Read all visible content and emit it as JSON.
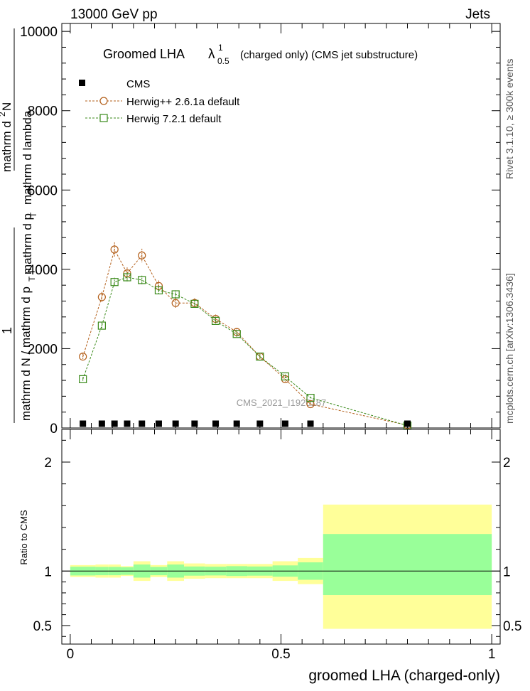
{
  "header": {
    "left": "13000 GeV pp",
    "right": "Jets"
  },
  "title": {
    "main": "Groomed LHA",
    "lambda": "λ",
    "lambda_sup": "1",
    "lambda_sub": "0.5",
    "suffix": "(charged only) (CMS jet substructure)"
  },
  "side_labels": {
    "rivet": "Rivet 3.1.10, ≥ 300k events",
    "mcplots": "mcplots.cern.ch [arXiv:1306.3436]"
  },
  "watermark": "CMS_2021_I1920187",
  "axes": {
    "ylabel_top_num": "1",
    "ylabel_top_a": "mathrm d N / mathrm d p",
    "ylabel_top_a_sub": "T",
    "ylabel_top_b": "mathrm d",
    "ylabel_top_b_sup": "2",
    "ylabel_top_c": "N",
    "ylabel_den_a": "mathrm d p",
    "ylabel_den_a_sub": "T",
    "ylabel_den_b": "mathrm d lambda",
    "ylabel_ratio": "Ratio to CMS",
    "xlabel": "groomed LHA (charged-only)"
  },
  "legend": [
    {
      "label": "CMS",
      "key": "cms"
    },
    {
      "label": "Herwig++ 2.6.1a default",
      "key": "hpp"
    },
    {
      "label": "Herwig 7.2.1 default",
      "key": "h7"
    }
  ],
  "chart_data": {
    "type": "line",
    "title": "Groomed LHA λ^1_0.5 (charged only) (CMS jet substructure)",
    "xlabel": "groomed LHA (charged-only)",
    "ylabel": "1/(dN/dpT) d²N/(dpT dλ)",
    "xlim": [
      -0.02,
      1.02
    ],
    "ylim": [
      0,
      10200
    ],
    "x_ticks": [
      0,
      0.5,
      1
    ],
    "x_tick_labels": [
      "0",
      "0.5",
      "1"
    ],
    "y_ticks": [
      0,
      2000,
      4000,
      6000,
      8000,
      10000
    ],
    "y_tick_labels": [
      "0",
      "2000",
      "4000",
      "6000",
      "8000",
      "10000"
    ],
    "bins": [
      [
        0.0,
        0.06
      ],
      [
        0.06,
        0.09
      ],
      [
        0.09,
        0.12
      ],
      [
        0.12,
        0.15
      ],
      [
        0.15,
        0.19
      ],
      [
        0.19,
        0.23
      ],
      [
        0.23,
        0.27
      ],
      [
        0.27,
        0.32
      ],
      [
        0.32,
        0.37
      ],
      [
        0.37,
        0.42
      ],
      [
        0.42,
        0.48
      ],
      [
        0.48,
        0.54
      ],
      [
        0.54,
        0.6
      ],
      [
        0.6,
        1.0
      ]
    ],
    "series": [
      {
        "name": "CMS",
        "color": "#000000",
        "marker": "filled-square",
        "x": [
          0.03,
          0.075,
          0.105,
          0.135,
          0.17,
          0.21,
          0.25,
          0.295,
          0.345,
          0.395,
          0.45,
          0.51,
          0.57,
          0.8
        ],
        "values": [
          25,
          28,
          40,
          45,
          50,
          38,
          30,
          28,
          22,
          18,
          12,
          8,
          5,
          1
        ]
      },
      {
        "name": "Herwig++ 2.6.1a default",
        "color": "#b35f1a",
        "marker": "open-circle",
        "x": [
          0.03,
          0.075,
          0.105,
          0.135,
          0.17,
          0.21,
          0.25,
          0.295,
          0.345,
          0.395,
          0.45,
          0.51,
          0.57,
          0.8
        ],
        "values": [
          1800,
          3300,
          4500,
          3900,
          4350,
          3580,
          3150,
          3150,
          2750,
          2420,
          1800,
          1230,
          600,
          70
        ],
        "errors": [
          80,
          130,
          180,
          150,
          170,
          140,
          130,
          120,
          110,
          100,
          80,
          60,
          40,
          10
        ]
      },
      {
        "name": "Herwig 7.2.1 default",
        "color": "#3a8a1a",
        "marker": "open-square",
        "x": [
          0.03,
          0.075,
          0.105,
          0.135,
          0.17,
          0.21,
          0.25,
          0.295,
          0.345,
          0.395,
          0.45,
          0.51,
          0.57,
          0.8
        ],
        "values": [
          1230,
          2580,
          3680,
          3800,
          3730,
          3470,
          3370,
          3130,
          2700,
          2370,
          1800,
          1300,
          760,
          60
        ],
        "errors": [
          50,
          80,
          110,
          110,
          110,
          100,
          100,
          90,
          80,
          70,
          60,
          50,
          30,
          10
        ]
      }
    ],
    "ratio": {
      "ylabel": "Ratio to CMS",
      "ylim": [
        0.33,
        2.3
      ],
      "y_ticks": [
        0.5,
        1,
        2
      ],
      "y_tick_labels": [
        "0.5",
        "1",
        "2"
      ],
      "inner_band": [
        [
          0.96,
          1.04
        ],
        [
          0.962,
          1.038
        ],
        [
          0.962,
          1.038
        ],
        [
          0.965,
          1.035
        ],
        [
          0.94,
          1.06
        ],
        [
          0.962,
          1.038
        ],
        [
          0.94,
          1.06
        ],
        [
          0.958,
          1.042
        ],
        [
          0.96,
          1.04
        ],
        [
          0.955,
          1.045
        ],
        [
          0.958,
          1.042
        ],
        [
          0.948,
          1.052
        ],
        [
          0.92,
          1.08
        ],
        [
          0.78,
          1.34
        ]
      ],
      "outer_band": [
        [
          0.945,
          1.055
        ],
        [
          0.94,
          1.06
        ],
        [
          0.94,
          1.06
        ],
        [
          0.955,
          1.045
        ],
        [
          0.91,
          1.09
        ],
        [
          0.945,
          1.055
        ],
        [
          0.91,
          1.09
        ],
        [
          0.93,
          1.07
        ],
        [
          0.935,
          1.065
        ],
        [
          0.935,
          1.065
        ],
        [
          0.935,
          1.065
        ],
        [
          0.91,
          1.09
        ],
        [
          0.88,
          1.12
        ],
        [
          0.47,
          1.61
        ]
      ],
      "inner_color": "#99ff99",
      "outer_color": "#ffff99"
    }
  }
}
